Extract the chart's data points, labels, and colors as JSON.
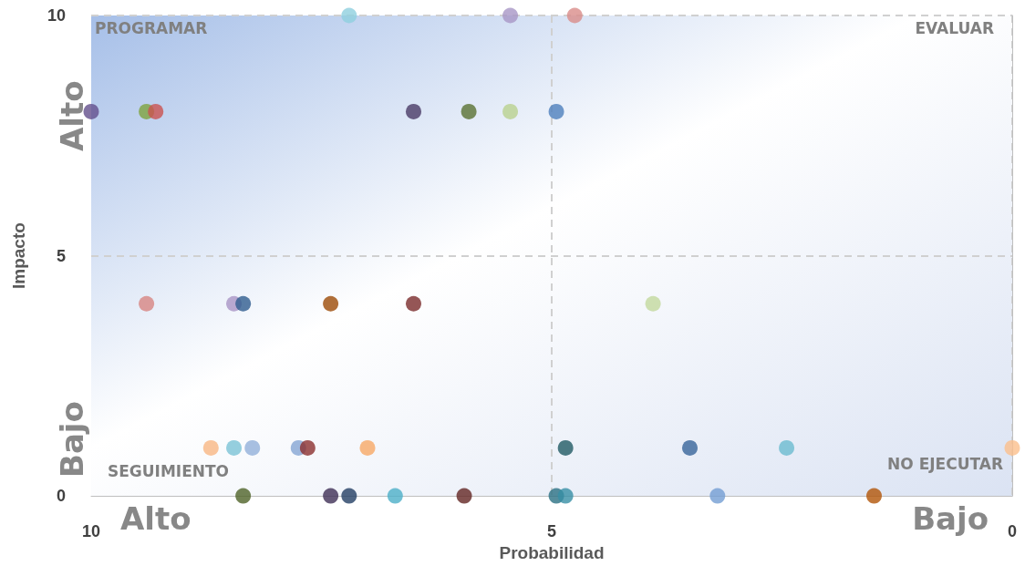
{
  "chart_data": {
    "type": "scatter",
    "xlabel": "Probabilidad",
    "ylabel": "Impacto",
    "x": [
      10,
      9.4,
      9.3,
      6.5,
      5.9,
      5.45,
      4.95,
      7.2,
      5.45,
      4.75,
      9.4,
      8.45,
      8.35,
      7.4,
      6.5,
      3.9,
      8.7,
      8.45,
      8.25,
      7.75,
      7.65,
      7.0,
      4.85,
      3.5,
      2.45,
      0,
      8.35,
      7.4,
      7.2,
      6.7,
      5.95,
      4.95,
      4.85,
      3.2,
      1.5
    ],
    "values": [
      8,
      8,
      8,
      8,
      8,
      8,
      8,
      10,
      10,
      10,
      4,
      4,
      4,
      4,
      4,
      4,
      1,
      1,
      1,
      1,
      1,
      1,
      1,
      1,
      1,
      1,
      0,
      0,
      0,
      0,
      0,
      0,
      0,
      0,
      0
    ],
    "colors": [
      "#634f8c",
      "#7ea23d",
      "#cb5250",
      "#4a3b66",
      "#5a7232",
      "#b9d18f",
      "#4e80bd",
      "#8ecfdf",
      "#a896c6",
      "#d98c8a",
      "#d78482",
      "#a995c5",
      "#2f5d8f",
      "#9c4b07",
      "#7a2c2c",
      "#c3d89e",
      "#f9b783",
      "#7cc3d6",
      "#92b0d9",
      "#84a5d3",
      "#8b2f2e",
      "#f8a765",
      "#215a64",
      "#37649a",
      "#6cbcd0",
      "#fbbf8c",
      "#4f6328",
      "#3f3056",
      "#233f64",
      "#4cafc8",
      "#632523",
      "#2a7083",
      "#378fa5",
      "#739ed3",
      "#b25508"
    ],
    "xlim": [
      10,
      0
    ],
    "xticks": [
      10,
      5,
      0
    ],
    "ylim": [
      0,
      10
    ],
    "yticks": [
      0,
      5,
      10
    ],
    "grid": true,
    "marker": "circle",
    "annotations": [
      "PROGRAMAR",
      "EVALUAR",
      "SEGUIMIENTO",
      "NO EJECUTAR",
      "Alto",
      "Bajo",
      "Alto",
      "Bajo"
    ]
  }
}
